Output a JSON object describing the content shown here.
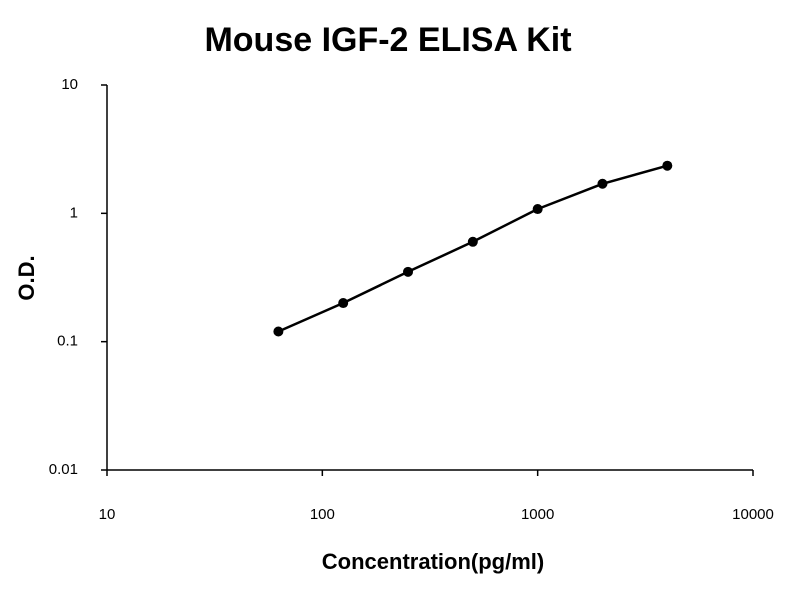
{
  "chart_data": {
    "type": "line",
    "title": "Mouse IGF-2 ELISA Kit",
    "x_label": "Concentration(pg/ml)",
    "y_label": "O.D.",
    "x": [
      62.5,
      125,
      250,
      500,
      1000,
      2000,
      4000
    ],
    "values": [
      0.12,
      0.2,
      0.35,
      0.6,
      1.08,
      1.7,
      2.35
    ],
    "color": "#000000",
    "xscale": "log",
    "yscale": "log",
    "xlim": [
      10,
      10000
    ],
    "ylim": [
      0.01,
      10
    ],
    "xticks": [
      10,
      100,
      1000,
      10000
    ],
    "yticks": [
      0.01,
      0.1,
      1,
      10
    ],
    "grid": false
  }
}
